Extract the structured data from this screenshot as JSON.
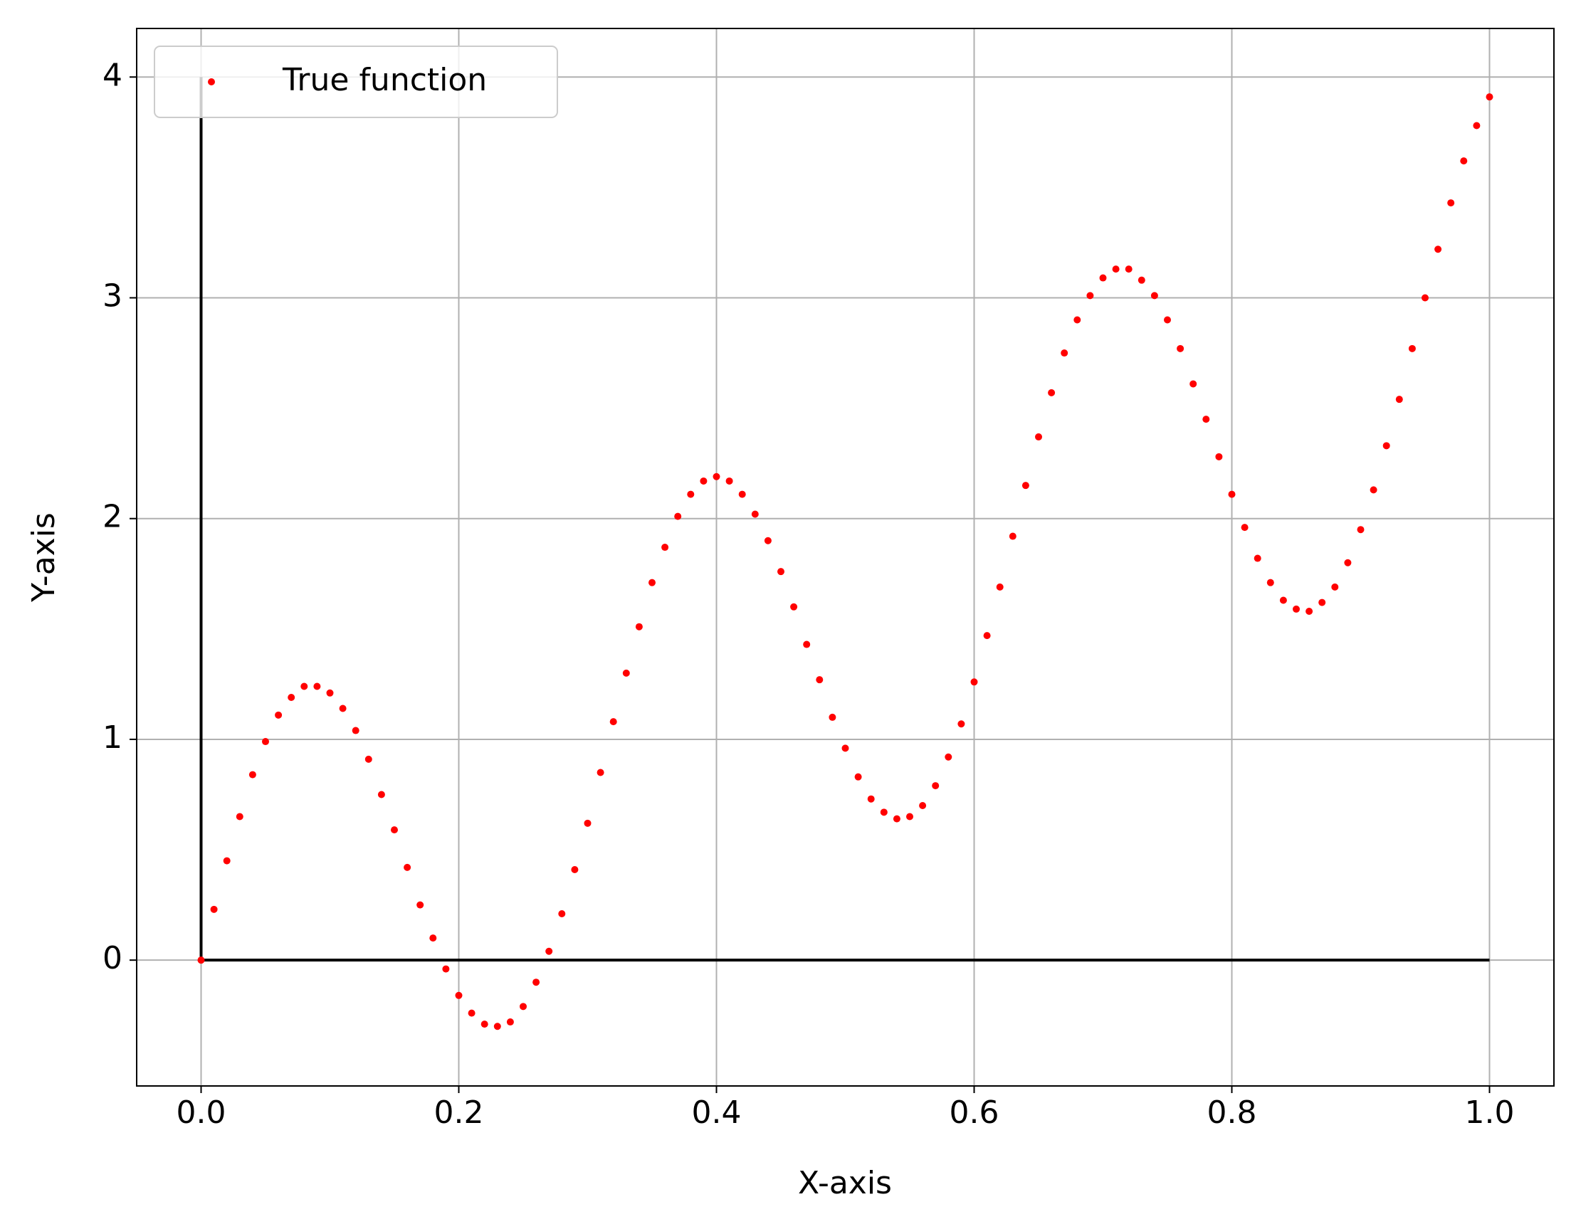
{
  "chart_data": {
    "type": "scatter",
    "xlabel": "X-axis",
    "ylabel": "Y-axis",
    "x": [
      0,
      0.01,
      0.02,
      0.03,
      0.04,
      0.05,
      0.06,
      0.07,
      0.08,
      0.09,
      0.1,
      0.11,
      0.12,
      0.13,
      0.14,
      0.15,
      0.16,
      0.17,
      0.18,
      0.19,
      0.2,
      0.21,
      0.22,
      0.23,
      0.24,
      0.25,
      0.26,
      0.27,
      0.28,
      0.29,
      0.3,
      0.31,
      0.32,
      0.33,
      0.34,
      0.35,
      0.36,
      0.37,
      0.38,
      0.39,
      0.4,
      0.41,
      0.42,
      0.43,
      0.44,
      0.45,
      0.46,
      0.47,
      0.48,
      0.49,
      0.5,
      0.51,
      0.52,
      0.53,
      0.54,
      0.55,
      0.56,
      0.57,
      0.58,
      0.59,
      0.6,
      0.61,
      0.62,
      0.63,
      0.64,
      0.65,
      0.66,
      0.67,
      0.68,
      0.69,
      0.7,
      0.71,
      0.72,
      0.73,
      0.74,
      0.75,
      0.76,
      0.77,
      0.78,
      0.79,
      0.8,
      0.81,
      0.82,
      0.83,
      0.84,
      0.85,
      0.86,
      0.87,
      0.88,
      0.89,
      0.9,
      0.91,
      0.92,
      0.93,
      0.94,
      0.95,
      0.96,
      0.97,
      0.98,
      0.99,
      1.0
    ],
    "series": [
      {
        "name": "True function",
        "color": "#ff0000",
        "values": [
          0,
          0.23,
          0.45,
          0.65,
          0.84,
          0.99,
          1.11,
          1.19,
          1.24,
          1.24,
          1.21,
          1.14,
          1.04,
          0.91,
          0.75,
          0.59,
          0.42,
          0.25,
          0.1,
          -0.04,
          -0.16,
          -0.24,
          -0.29,
          -0.3,
          -0.28,
          -0.21,
          -0.1,
          0.04,
          0.21,
          0.41,
          0.62,
          0.85,
          1.08,
          1.3,
          1.51,
          1.71,
          1.87,
          2.01,
          2.11,
          2.17,
          2.19,
          2.17,
          2.11,
          2.02,
          1.9,
          1.76,
          1.6,
          1.43,
          1.27,
          1.1,
          0.96,
          0.83,
          0.73,
          0.67,
          0.64,
          0.65,
          0.7,
          0.79,
          0.92,
          1.07,
          1.26,
          1.47,
          1.69,
          1.92,
          2.15,
          2.37,
          2.57,
          2.75,
          2.9,
          3.01,
          3.09,
          3.13,
          3.13,
          3.08,
          3.01,
          2.9,
          2.77,
          2.61,
          2.45,
          2.28,
          2.11,
          1.96,
          1.82,
          1.71,
          1.63,
          1.59,
          1.58,
          1.62,
          1.69,
          1.8,
          1.95,
          2.13,
          2.33,
          2.54,
          2.77,
          3.0,
          3.22,
          3.43,
          3.62,
          3.78,
          3.91
        ]
      }
    ],
    "reference_lines": [
      {
        "x": [
          0,
          1
        ],
        "y": [
          0,
          0
        ],
        "color": "#000000"
      },
      {
        "x": [
          0,
          0
        ],
        "y": [
          0,
          4
        ],
        "color": "#000000"
      }
    ],
    "xlim": [
      -0.05,
      1.05
    ],
    "ylim": [
      -0.57,
      4.22
    ],
    "xticks": [
      {
        "value": 0,
        "label": "0.0"
      },
      0.2,
      0.4,
      0.6,
      0.8,
      {
        "value": 1,
        "label": "1.0"
      }
    ],
    "yticks": [
      0,
      1,
      2,
      3,
      4
    ],
    "grid": true,
    "legend": "upper left"
  }
}
